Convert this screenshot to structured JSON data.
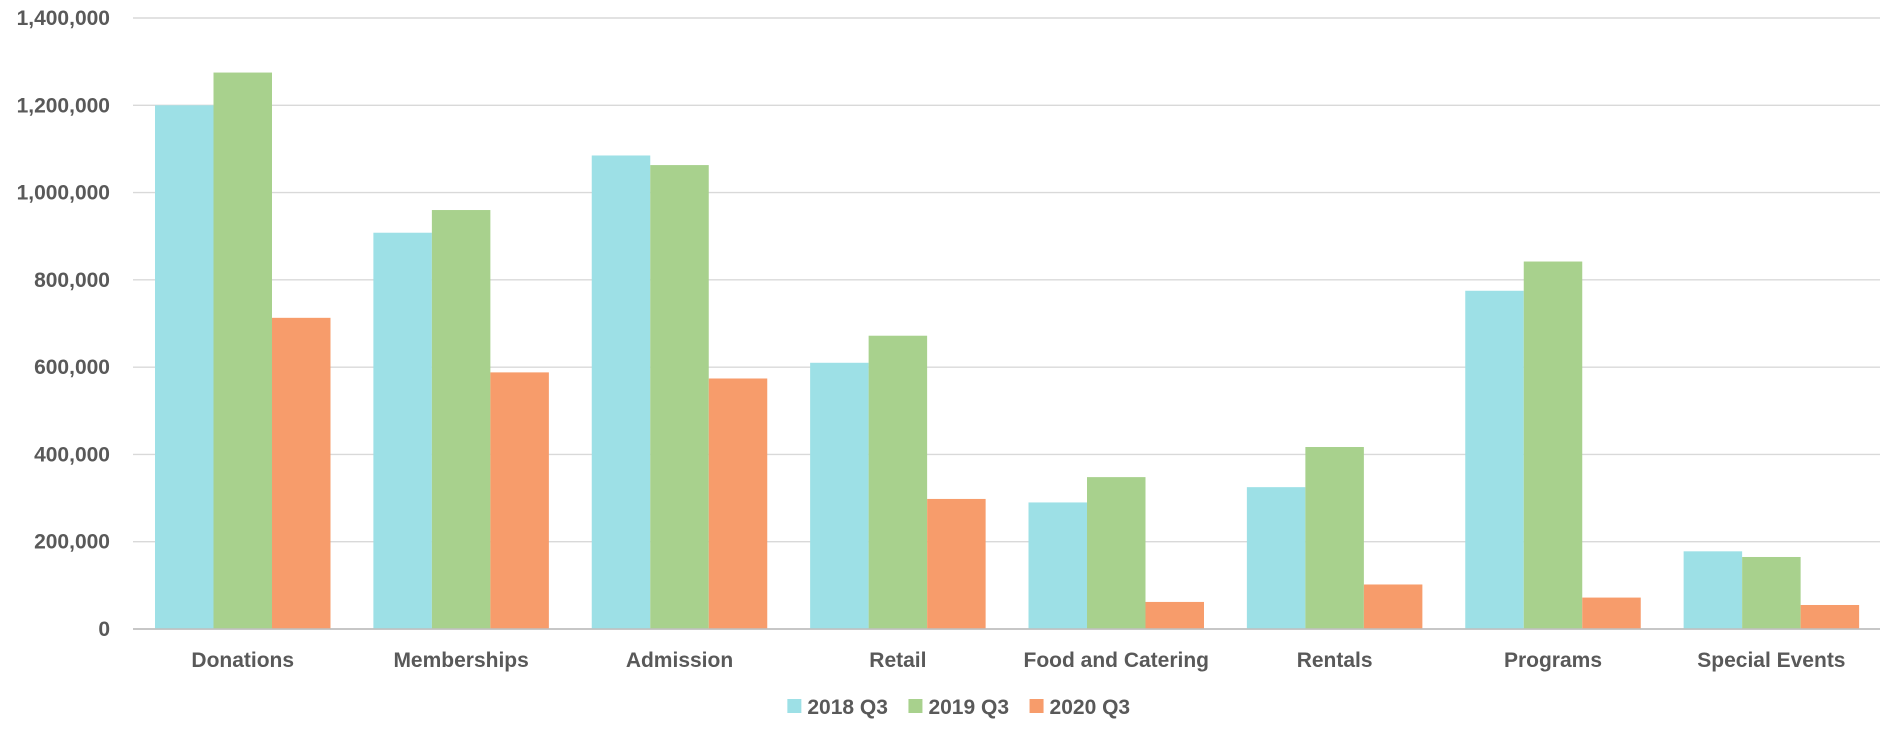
{
  "chart_data": {
    "type": "bar",
    "title": "",
    "xlabel": "",
    "ylabel": "",
    "ylim": [
      0,
      1400000
    ],
    "y_ticks": [
      0,
      200000,
      400000,
      600000,
      800000,
      1000000,
      1200000,
      1400000
    ],
    "y_tick_labels": [
      "0",
      "200,000",
      "400,000",
      "600,000",
      "800,000",
      "1,000,000",
      "1,200,000",
      "1,400,000"
    ],
    "grid": true,
    "legend_position": "bottom",
    "categories": [
      "Donations",
      "Memberships",
      "Admission",
      "Retail",
      "Food and Catering",
      "Rentals",
      "Programs",
      "Special Events"
    ],
    "series": [
      {
        "name": "2018 Q3",
        "color": "#9de0e6",
        "values": [
          1200000,
          908000,
          1085000,
          610000,
          290000,
          325000,
          775000,
          178000
        ]
      },
      {
        "name": "2019 Q3",
        "color": "#a8d18d",
        "values": [
          1275000,
          960000,
          1063000,
          672000,
          348000,
          417000,
          842000,
          165000
        ]
      },
      {
        "name": "2020 Q3",
        "color": "#f79c6b",
        "values": [
          713000,
          588000,
          574000,
          298000,
          62000,
          102000,
          72000,
          55000
        ]
      }
    ]
  }
}
